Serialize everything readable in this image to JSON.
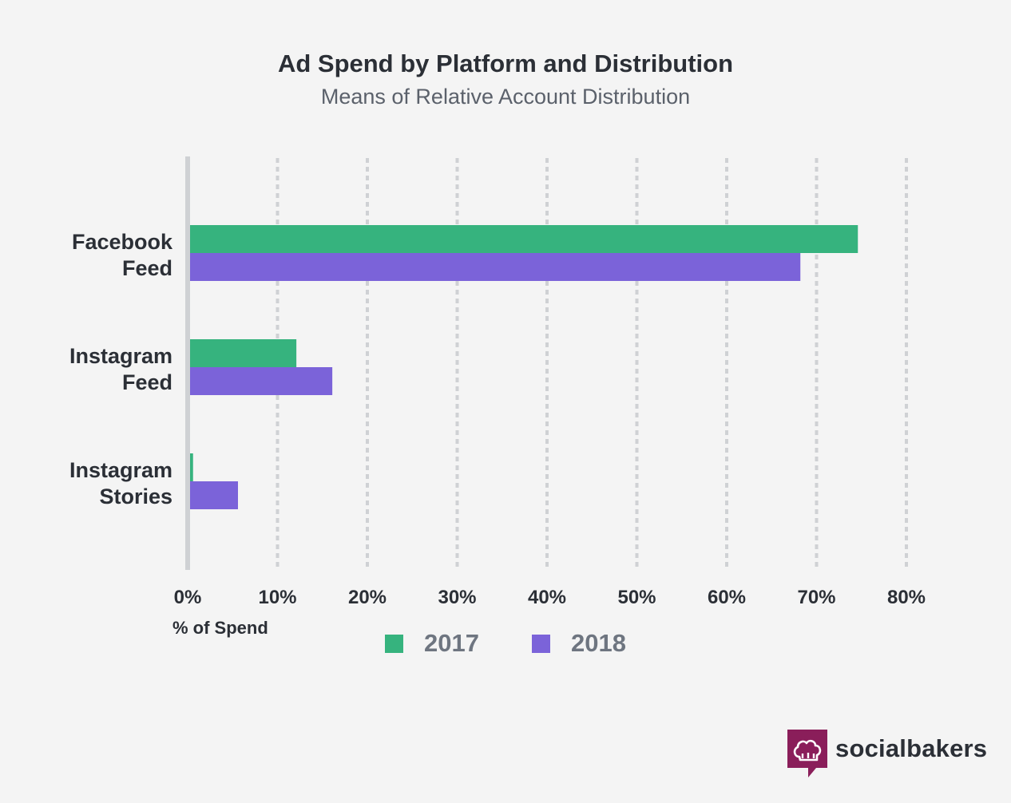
{
  "title": "Ad Spend by Platform and Distribution",
  "subtitle": "Means of Relative Account Distribution",
  "brand": {
    "name": "socialbakers",
    "color": "#8a1e5a",
    "icon": "chef-hat-icon"
  },
  "chart_data": {
    "type": "bar",
    "orientation": "horizontal",
    "title": "Ad Spend by Platform and Distribution",
    "subtitle": "Means of Relative Account Distribution",
    "xlabel": "% of Spend",
    "ylabel": "",
    "categories": [
      [
        "Facebook",
        "Feed"
      ],
      [
        "Instagram",
        "Feed"
      ],
      [
        "Instagram",
        "Stories"
      ]
    ],
    "series": [
      {
        "name": "2017",
        "color": "#36b37e",
        "values": [
          74.6,
          12.1,
          0.6
        ]
      },
      {
        "name": "2018",
        "color": "#7b63d9",
        "values": [
          68.2,
          16.1,
          5.6
        ]
      }
    ],
    "xlim": [
      0,
      80
    ],
    "xticks": [
      0,
      10,
      20,
      30,
      40,
      50,
      60,
      70,
      80
    ],
    "tick_suffix": "%",
    "grid": "vertical dashed",
    "legend": "bottom-center"
  }
}
